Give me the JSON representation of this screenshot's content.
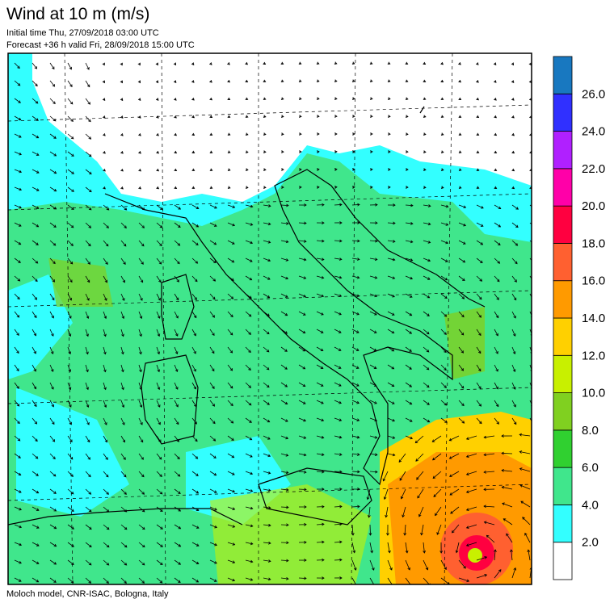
{
  "header": {
    "title": "Wind at 10 m (m/s)",
    "initial_time": "Initial time  Thu, 27/09/2018 03:00 UTC",
    "forecast": "Forecast +36 h valid  Fri, 28/09/2018 15:00 UTC"
  },
  "colorbar": {
    "labels": [
      "2.0",
      "4.0",
      "6.0",
      "8.0",
      "10.0",
      "12.0",
      "14.0",
      "16.0",
      "18.0",
      "20.0",
      "22.0",
      "24.0",
      "26.0"
    ],
    "colors": [
      "#ffffff",
      "#33ffff",
      "#40e68c",
      "#30d030",
      "#80d020",
      "#c8f000",
      "#ffd000",
      "#ff9a00",
      "#ff6030",
      "#ff0040",
      "#ff00a8",
      "#b020ff",
      "#3030ff",
      "#1878c0"
    ]
  },
  "footer": "Moloch model, CNR-ISAC, Bologna, Italy"
}
